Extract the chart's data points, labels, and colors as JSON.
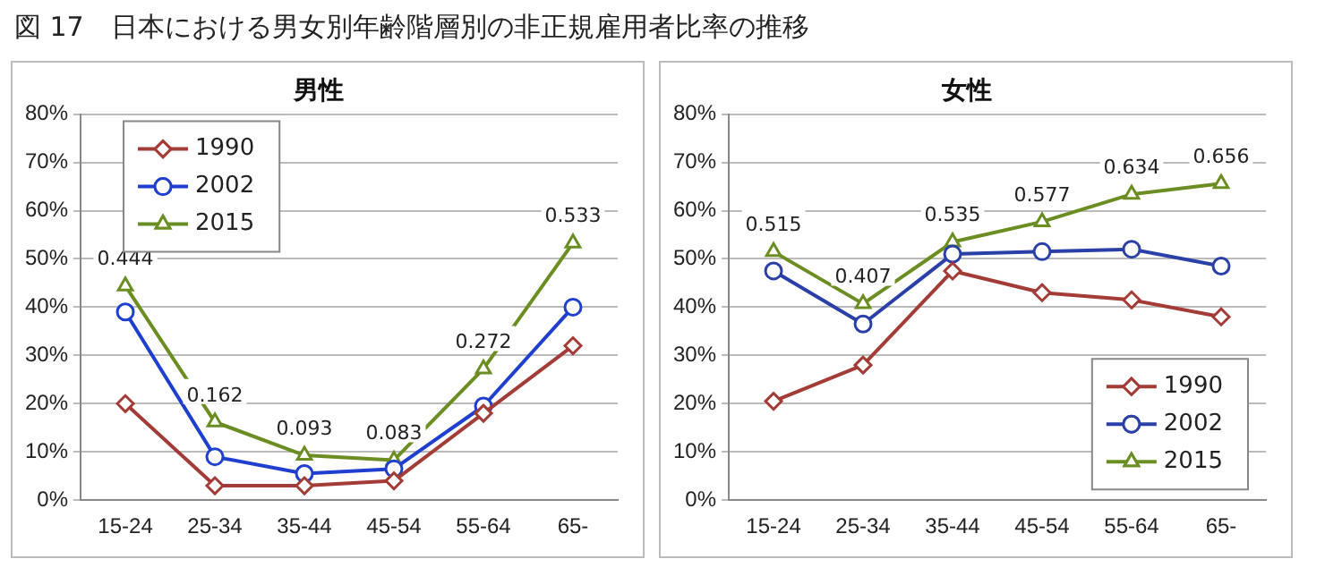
{
  "chart_data": [
    {
      "type": "line",
      "title": "男性",
      "annotations": [
        "図 17　日本における男女別年齢階層別の非正規雇用者比率の推移"
      ],
      "categories": [
        "15-24",
        "25-34",
        "35-44",
        "45-54",
        "55-64",
        "65-"
      ],
      "ylim": [
        0,
        0.8
      ],
      "yticks": [
        {
          "value": 0,
          "label": "0%"
        },
        {
          "value": 0.1,
          "label": "10%"
        },
        {
          "value": 0.2,
          "label": "20%"
        },
        {
          "value": 0.3,
          "label": "30%"
        },
        {
          "value": 0.4,
          "label": "40%"
        },
        {
          "value": 0.5,
          "label": "50%"
        },
        {
          "value": 0.6,
          "label": "60%"
        },
        {
          "value": 0.7,
          "label": "70%"
        },
        {
          "value": 0.8,
          "label": "80%"
        }
      ],
      "grid": "y",
      "legend": "top left",
      "series": [
        {
          "name": "1990",
          "color": "#a33b36",
          "marker": "diamond",
          "values": [
            0.2,
            0.03,
            0.03,
            0.04,
            0.18,
            0.32
          ]
        },
        {
          "name": "2002",
          "color": "#1f3fcf",
          "marker": "circle",
          "values": [
            0.39,
            0.09,
            0.055,
            0.065,
            0.195,
            0.4
          ]
        },
        {
          "name": "2015",
          "color": "#6b8e23",
          "marker": "triangle",
          "values": [
            0.444,
            0.162,
            0.093,
            0.083,
            0.272,
            0.533
          ],
          "value_labels": [
            "0.444",
            "0.162",
            "0.093",
            "0.083",
            "0.272",
            "0.533"
          ]
        }
      ]
    },
    {
      "type": "line",
      "title": "女性",
      "categories": [
        "15-24",
        "25-34",
        "35-44",
        "45-54",
        "55-64",
        "65-"
      ],
      "ylim": [
        0,
        0.8
      ],
      "yticks": [
        {
          "value": 0,
          "label": "0%"
        },
        {
          "value": 0.1,
          "label": "10%"
        },
        {
          "value": 0.2,
          "label": "20%"
        },
        {
          "value": 0.3,
          "label": "30%"
        },
        {
          "value": 0.4,
          "label": "40%"
        },
        {
          "value": 0.5,
          "label": "50%"
        },
        {
          "value": 0.6,
          "label": "60%"
        },
        {
          "value": 0.7,
          "label": "70%"
        },
        {
          "value": 0.8,
          "label": "80%"
        }
      ],
      "grid": "y",
      "legend": "bottom right",
      "series": [
        {
          "name": "1990",
          "color": "#a33b36",
          "marker": "diamond",
          "values": [
            0.205,
            0.28,
            0.475,
            0.43,
            0.415,
            0.38
          ]
        },
        {
          "name": "2002",
          "color": "#2a40a8",
          "marker": "circle",
          "values": [
            0.475,
            0.365,
            0.51,
            0.515,
            0.52,
            0.485
          ]
        },
        {
          "name": "2015",
          "color": "#6b8e23",
          "marker": "triangle",
          "values": [
            0.515,
            0.407,
            0.535,
            0.577,
            0.634,
            0.656
          ],
          "value_labels": [
            "0.515",
            "0.407",
            "0.535",
            "0.577",
            "0.634",
            "0.656"
          ]
        }
      ]
    }
  ]
}
